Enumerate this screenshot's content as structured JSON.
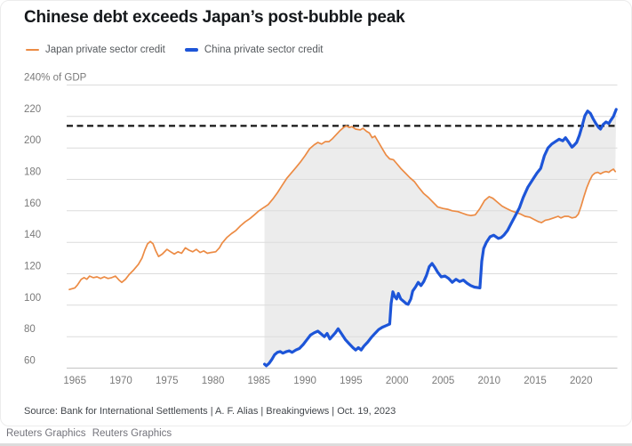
{
  "title": "Chinese debt exceeds Japan’s post-bubble peak",
  "legend": [
    {
      "label": "Japan private sector credit",
      "color": "#EC8B44"
    },
    {
      "label": "China private sector credit",
      "color": "#1D55D8"
    }
  ],
  "y_axis_top_label": "240% of GDP",
  "source": "Source: Bank for International Settlements | A. F. Alias | Breakingviews | Oct. 19, 2023",
  "footer": [
    "Reuters Graphics",
    "Reuters Graphics"
  ],
  "chart_data": {
    "type": "line",
    "title": "Chinese debt exceeds Japan’s post-bubble peak",
    "xlabel": "",
    "ylabel": "% of GDP",
    "ylim": [
      60,
      240
    ],
    "xlim": [
      1963.5,
      2024.5
    ],
    "grid": true,
    "legend_position": "top-left",
    "yticks": [
      60,
      80,
      100,
      120,
      140,
      160,
      180,
      200,
      220,
      240
    ],
    "xticks": [
      1965,
      1970,
      1975,
      1980,
      1985,
      1990,
      1995,
      2000,
      2005,
      2010,
      2015,
      2020
    ],
    "reference_line": {
      "value": 214,
      "style": "dashed",
      "color": "#141414"
    },
    "band_between_series": true,
    "band_color": "#ECECEC",
    "series": [
      {
        "name": "Japan private sector credit",
        "color": "#EC8B44",
        "points": [
          [
            1964.4,
            110
          ],
          [
            1964.7,
            110.5
          ],
          [
            1965,
            111
          ],
          [
            1965.3,
            113
          ],
          [
            1965.7,
            116.5
          ],
          [
            1966,
            117.5
          ],
          [
            1966.3,
            116.5
          ],
          [
            1966.6,
            118.5
          ],
          [
            1967,
            117.5
          ],
          [
            1967.4,
            118
          ],
          [
            1967.8,
            117
          ],
          [
            1968.2,
            118
          ],
          [
            1968.6,
            117
          ],
          [
            1969,
            117.5
          ],
          [
            1969.4,
            118.5
          ],
          [
            1969.8,
            116
          ],
          [
            1970.1,
            114.5
          ],
          [
            1970.5,
            116.5
          ],
          [
            1970.9,
            119.5
          ],
          [
            1971.4,
            122.5
          ],
          [
            1971.9,
            126
          ],
          [
            1972.3,
            130
          ],
          [
            1972.6,
            135
          ],
          [
            1972.9,
            139
          ],
          [
            1973.2,
            140.5
          ],
          [
            1973.5,
            139
          ],
          [
            1973.8,
            134.5
          ],
          [
            1974.1,
            131
          ],
          [
            1974.5,
            132.5
          ],
          [
            1975,
            135.5
          ],
          [
            1975.4,
            134
          ],
          [
            1975.8,
            132.5
          ],
          [
            1976.2,
            134
          ],
          [
            1976.6,
            133
          ],
          [
            1977,
            136.5
          ],
          [
            1977.4,
            135
          ],
          [
            1977.8,
            134
          ],
          [
            1978.2,
            135.5
          ],
          [
            1978.6,
            133.5
          ],
          [
            1979,
            134.5
          ],
          [
            1979.4,
            133
          ],
          [
            1979.8,
            133.5
          ],
          [
            1980.3,
            134
          ],
          [
            1980.7,
            136.5
          ],
          [
            1981,
            139.5
          ],
          [
            1981.5,
            143
          ],
          [
            1982,
            145.5
          ],
          [
            1982.5,
            147.5
          ],
          [
            1983,
            150.5
          ],
          [
            1983.5,
            153
          ],
          [
            1984,
            155
          ],
          [
            1984.5,
            157.5
          ],
          [
            1985,
            160
          ],
          [
            1985.5,
            162
          ],
          [
            1986,
            164
          ],
          [
            1986.5,
            167.5
          ],
          [
            1987,
            171.5
          ],
          [
            1987.5,
            176
          ],
          [
            1988,
            180.5
          ],
          [
            1988.5,
            184
          ],
          [
            1989,
            187.5
          ],
          [
            1989.5,
            191
          ],
          [
            1990,
            195
          ],
          [
            1990.5,
            199.5
          ],
          [
            1991,
            202
          ],
          [
            1991.4,
            203.5
          ],
          [
            1991.8,
            202.5
          ],
          [
            1992.2,
            204
          ],
          [
            1992.6,
            204
          ],
          [
            1993,
            206
          ],
          [
            1993.4,
            208.5
          ],
          [
            1993.8,
            211
          ],
          [
            1994.2,
            213
          ],
          [
            1994.5,
            214
          ],
          [
            1994.8,
            213
          ],
          [
            1995.1,
            213.5
          ],
          [
            1995.5,
            212
          ],
          [
            1996,
            211.5
          ],
          [
            1996.3,
            212.5
          ],
          [
            1996.7,
            210.5
          ],
          [
            1997,
            209.5
          ],
          [
            1997.3,
            206.5
          ],
          [
            1997.6,
            207.5
          ],
          [
            1998,
            203.5
          ],
          [
            1998.4,
            199.5
          ],
          [
            1998.8,
            195.5
          ],
          [
            1999.2,
            193
          ],
          [
            1999.6,
            192.5
          ],
          [
            1999.9,
            190.5
          ],
          [
            2000.4,
            187
          ],
          [
            2000.9,
            184
          ],
          [
            2001.4,
            181
          ],
          [
            2001.9,
            178.5
          ],
          [
            2002.4,
            174.5
          ],
          [
            2002.9,
            171
          ],
          [
            2003.4,
            168.5
          ],
          [
            2003.9,
            165.5
          ],
          [
            2004.4,
            162.5
          ],
          [
            2005,
            161.5
          ],
          [
            2005.5,
            161
          ],
          [
            2006,
            160
          ],
          [
            2006.6,
            159.5
          ],
          [
            2007.1,
            158.5
          ],
          [
            2007.6,
            157.5
          ],
          [
            2008,
            157
          ],
          [
            2008.5,
            157.5
          ],
          [
            2009,
            161.5
          ],
          [
            2009.5,
            166.5
          ],
          [
            2010,
            169
          ],
          [
            2010.4,
            168
          ],
          [
            2010.9,
            165.5
          ],
          [
            2011.4,
            163
          ],
          [
            2011.9,
            161.5
          ],
          [
            2012.4,
            160
          ],
          [
            2012.9,
            159
          ],
          [
            2013.4,
            158
          ],
          [
            2013.9,
            156.5
          ],
          [
            2014.4,
            156
          ],
          [
            2014.9,
            154.5
          ],
          [
            2015.4,
            153
          ],
          [
            2015.7,
            152.5
          ],
          [
            2016.1,
            154
          ],
          [
            2016.5,
            154.5
          ],
          [
            2017,
            155.5
          ],
          [
            2017.5,
            156.5
          ],
          [
            2017.8,
            155.5
          ],
          [
            2018.2,
            156.5
          ],
          [
            2018.6,
            156.5
          ],
          [
            2019,
            155.5
          ],
          [
            2019.4,
            156
          ],
          [
            2019.7,
            158
          ],
          [
            2020,
            163
          ],
          [
            2020.3,
            169
          ],
          [
            2020.6,
            174.5
          ],
          [
            2020.9,
            179
          ],
          [
            2021.2,
            182.5
          ],
          [
            2021.5,
            184
          ],
          [
            2021.8,
            184.5
          ],
          [
            2022.1,
            183.5
          ],
          [
            2022.4,
            184.5
          ],
          [
            2022.7,
            185
          ],
          [
            2023,
            184.5
          ],
          [
            2023.2,
            185.5
          ],
          [
            2023.5,
            186.5
          ],
          [
            2023.7,
            185
          ]
        ]
      },
      {
        "name": "China private sector credit",
        "color": "#1D55D8",
        "points": [
          [
            1985.6,
            62.5
          ],
          [
            1985.8,
            61.5
          ],
          [
            1986.1,
            63
          ],
          [
            1986.4,
            65.5
          ],
          [
            1986.7,
            68.5
          ],
          [
            1987,
            70
          ],
          [
            1987.3,
            70.5
          ],
          [
            1987.6,
            69.5
          ],
          [
            1988,
            70.5
          ],
          [
            1988.3,
            71
          ],
          [
            1988.6,
            70
          ],
          [
            1989,
            71.5
          ],
          [
            1989.4,
            72.5
          ],
          [
            1989.8,
            75
          ],
          [
            1990.2,
            78
          ],
          [
            1990.6,
            81
          ],
          [
            1991,
            82.5
          ],
          [
            1991.4,
            83.5
          ],
          [
            1991.8,
            81.5
          ],
          [
            1992.1,
            80
          ],
          [
            1992.4,
            82
          ],
          [
            1992.7,
            78.5
          ],
          [
            1993,
            80.5
          ],
          [
            1993.3,
            82.5
          ],
          [
            1993.6,
            85
          ],
          [
            1994,
            81.5
          ],
          [
            1994.4,
            78
          ],
          [
            1994.8,
            75.5
          ],
          [
            1995.2,
            73
          ],
          [
            1995.5,
            71.5
          ],
          [
            1995.8,
            73
          ],
          [
            1996.1,
            71.5
          ],
          [
            1996.4,
            74
          ],
          [
            1996.8,
            76.5
          ],
          [
            1997.2,
            79.5
          ],
          [
            1997.6,
            82
          ],
          [
            1998,
            84.5
          ],
          [
            1998.4,
            86
          ],
          [
            1998.8,
            87
          ],
          [
            1999.2,
            88
          ],
          [
            1999.35,
            101
          ],
          [
            1999.55,
            108.5
          ],
          [
            1999.75,
            105.5
          ],
          [
            1999.95,
            104
          ],
          [
            2000.15,
            107.5
          ],
          [
            2000.4,
            104
          ],
          [
            2000.7,
            102.5
          ],
          [
            2001,
            101
          ],
          [
            2001.2,
            100.5
          ],
          [
            2001.5,
            104
          ],
          [
            2001.7,
            109
          ],
          [
            2002,
            111.5
          ],
          [
            2002.3,
            114.5
          ],
          [
            2002.6,
            112.5
          ],
          [
            2002.9,
            115
          ],
          [
            2003.2,
            119
          ],
          [
            2003.5,
            124.5
          ],
          [
            2003.8,
            126.5
          ],
          [
            2004.1,
            124
          ],
          [
            2004.4,
            121
          ],
          [
            2004.8,
            118
          ],
          [
            2005.2,
            118.5
          ],
          [
            2005.6,
            117
          ],
          [
            2006,
            114.5
          ],
          [
            2006.4,
            116.5
          ],
          [
            2006.8,
            115
          ],
          [
            2007.2,
            116
          ],
          [
            2007.6,
            114
          ],
          [
            2008,
            112.5
          ],
          [
            2008.4,
            111.5
          ],
          [
            2009,
            111
          ],
          [
            2009.2,
            128
          ],
          [
            2009.4,
            136
          ],
          [
            2009.7,
            140
          ],
          [
            2010.1,
            143.5
          ],
          [
            2010.5,
            144.5
          ],
          [
            2011,
            142.5
          ],
          [
            2011.3,
            143
          ],
          [
            2011.6,
            144.5
          ],
          [
            2012,
            147.5
          ],
          [
            2012.4,
            152
          ],
          [
            2012.9,
            157.5
          ],
          [
            2013.3,
            162
          ],
          [
            2013.7,
            168.5
          ],
          [
            2014.2,
            175
          ],
          [
            2014.8,
            180.5
          ],
          [
            2015.2,
            184
          ],
          [
            2015.6,
            187
          ],
          [
            2016,
            195
          ],
          [
            2016.4,
            200
          ],
          [
            2016.8,
            202.5
          ],
          [
            2017.2,
            204
          ],
          [
            2017.6,
            205.5
          ],
          [
            2018,
            204.5
          ],
          [
            2018.3,
            206.5
          ],
          [
            2018.6,
            204
          ],
          [
            2019,
            200.5
          ],
          [
            2019.2,
            201.5
          ],
          [
            2019.5,
            203.5
          ],
          [
            2019.8,
            208
          ],
          [
            2020.1,
            214
          ],
          [
            2020.4,
            220.5
          ],
          [
            2020.7,
            223.5
          ],
          [
            2021,
            222
          ],
          [
            2021.3,
            218.5
          ],
          [
            2021.6,
            215.5
          ],
          [
            2021.9,
            213
          ],
          [
            2022.1,
            212
          ],
          [
            2022.4,
            215
          ],
          [
            2022.7,
            216.5
          ],
          [
            2023,
            215.5
          ],
          [
            2023.2,
            217.5
          ],
          [
            2023.5,
            220
          ],
          [
            2023.8,
            224.5
          ]
        ]
      }
    ]
  }
}
